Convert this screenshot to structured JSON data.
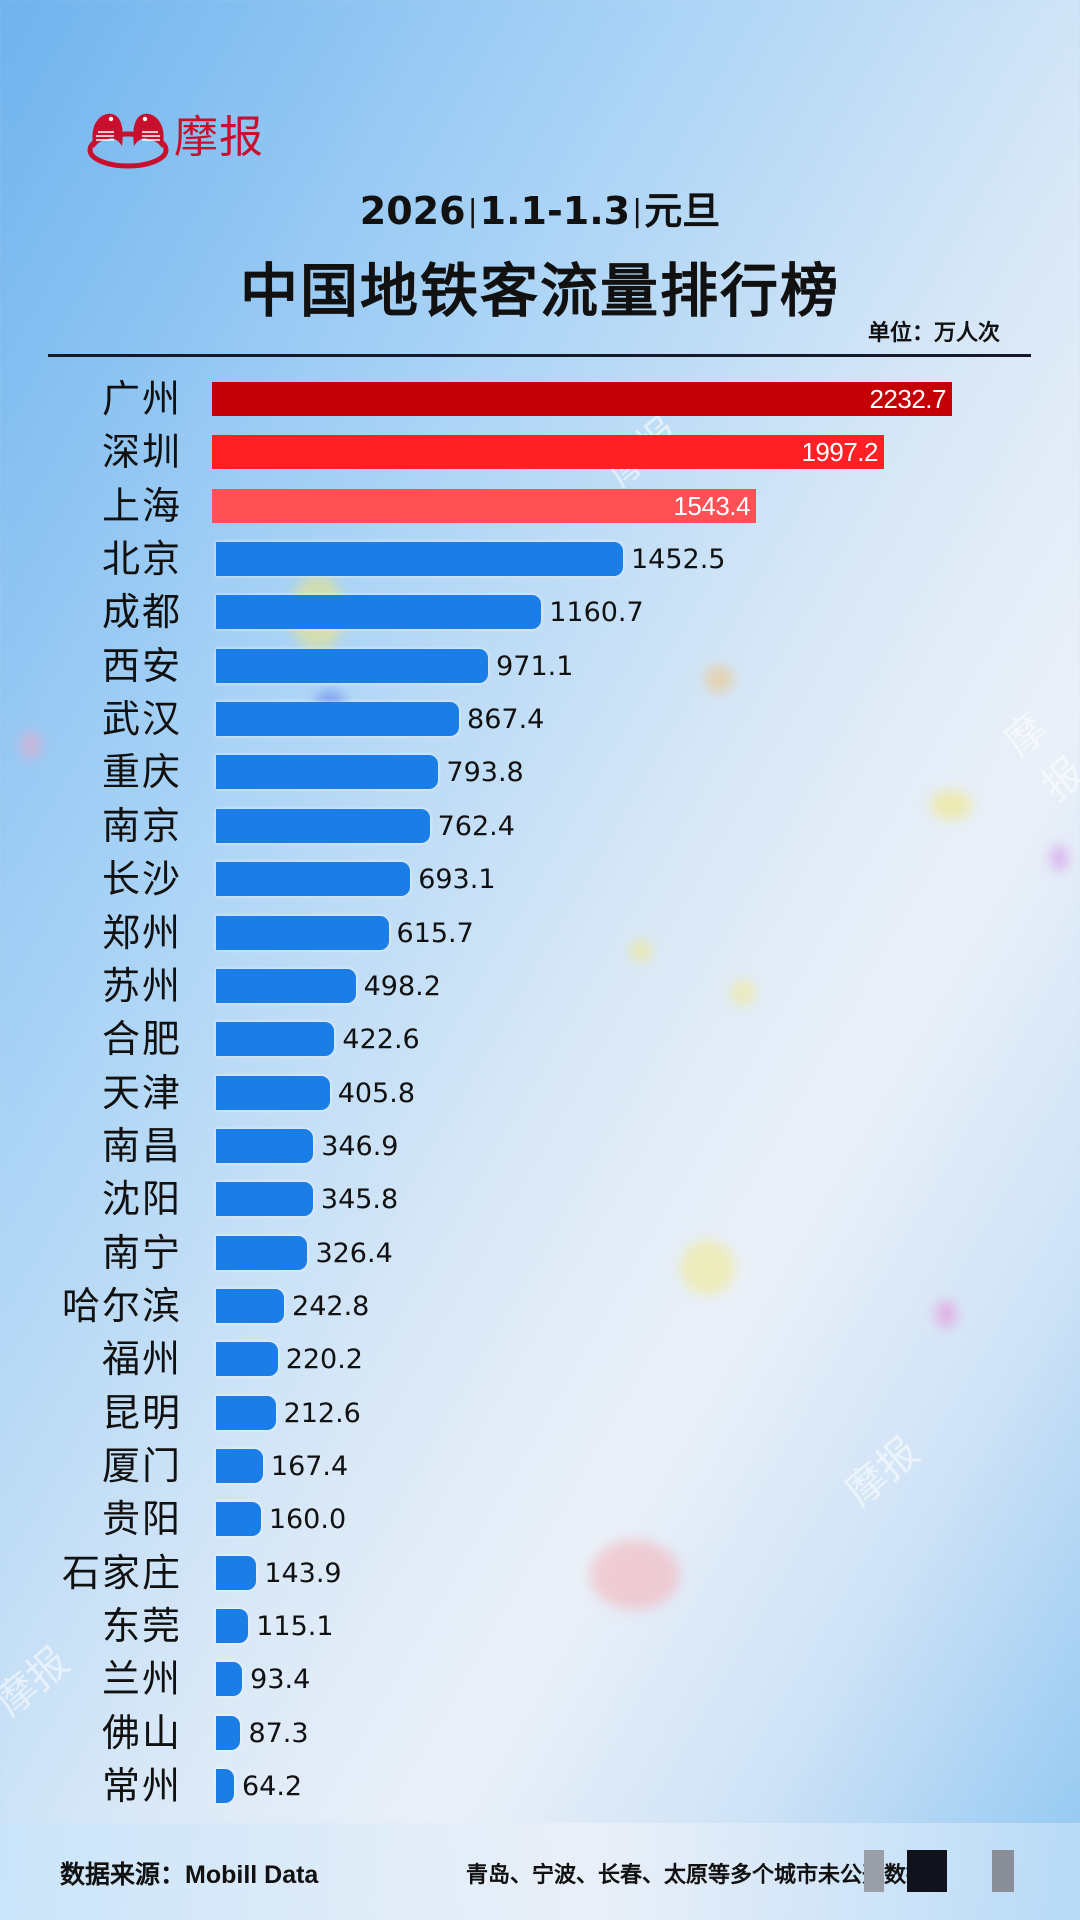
{
  "header": {
    "brand": "摩报",
    "subtitle_year": "2026",
    "subtitle_range": "1.1-1.3",
    "subtitle_holiday": "元旦",
    "subtitle_separator": "|",
    "title": "中国地铁客流量排行榜",
    "unit": "单位：万人次"
  },
  "footer": {
    "source": "数据来源：Mobill Data",
    "note": "青岛、宁波、长春、太原等多个城市未公开数据"
  },
  "watermark": "摩报",
  "colors": {
    "rank1": "#c40006",
    "rank2": "#ff1f24",
    "rank3": "#ff5055",
    "others": "#1a7ee6",
    "brand": "#c8102e"
  },
  "rows": [
    {
      "city": "广州",
      "value": "2232.7"
    },
    {
      "city": "深圳",
      "value": "1997.2"
    },
    {
      "city": "上海",
      "value": "1543.4"
    },
    {
      "city": "北京",
      "value": "1452.5"
    },
    {
      "city": "成都",
      "value": "1160.7"
    },
    {
      "city": "西安",
      "value": "971.1"
    },
    {
      "city": "武汉",
      "value": "867.4"
    },
    {
      "city": "重庆",
      "value": "793.8"
    },
    {
      "city": "南京",
      "value": "762.4"
    },
    {
      "city": "长沙",
      "value": "693.1"
    },
    {
      "city": "郑州",
      "value": "615.7"
    },
    {
      "city": "苏州",
      "value": "498.2"
    },
    {
      "city": "合肥",
      "value": "422.6"
    },
    {
      "city": "天津",
      "value": "405.8"
    },
    {
      "city": "南昌",
      "value": "346.9"
    },
    {
      "city": "沈阳",
      "value": "345.8"
    },
    {
      "city": "南宁",
      "value": "326.4"
    },
    {
      "city": "哈尔滨",
      "value": "242.8"
    },
    {
      "city": "福州",
      "value": "220.2"
    },
    {
      "city": "昆明",
      "value": "212.6"
    },
    {
      "city": "厦门",
      "value": "167.4"
    },
    {
      "city": "贵阳",
      "value": "160.0"
    },
    {
      "city": "石家庄",
      "value": "143.9"
    },
    {
      "city": "东莞",
      "value": "115.1"
    },
    {
      "city": "兰州",
      "value": "93.4"
    },
    {
      "city": "佛山",
      "value": "87.3"
    },
    {
      "city": "常州",
      "value": "64.2"
    }
  ],
  "chart_data": {
    "type": "bar",
    "orientation": "horizontal",
    "title": "中国地铁客流量排行榜",
    "subtitle": "2026 | 1.1-1.3 | 元旦",
    "xlabel": "",
    "ylabel": "",
    "unit": "万人次",
    "categories": [
      "广州",
      "深圳",
      "上海",
      "北京",
      "成都",
      "西安",
      "武汉",
      "重庆",
      "南京",
      "长沙",
      "郑州",
      "苏州",
      "合肥",
      "天津",
      "南昌",
      "沈阳",
      "南宁",
      "哈尔滨",
      "福州",
      "昆明",
      "厦门",
      "贵阳",
      "石家庄",
      "东莞",
      "兰州",
      "佛山",
      "常州"
    ],
    "values": [
      2232.7,
      1997.2,
      1543.4,
      1452.5,
      1160.7,
      971.1,
      867.4,
      793.8,
      762.4,
      693.1,
      615.7,
      498.2,
      422.6,
      405.8,
      346.9,
      345.8,
      326.4,
      242.8,
      220.2,
      212.6,
      167.4,
      160.0,
      143.9,
      115.1,
      93.4,
      87.3,
      64.2
    ],
    "highlight": {
      "top3_colors": [
        "#c40006",
        "#ff1f24",
        "#ff5055"
      ],
      "rest_color": "#1a7ee6"
    },
    "data_labels": true,
    "grid": false,
    "legend": null,
    "source": "Mobill Data",
    "note": "青岛、宁波、长春、太原等多个城市未公开数据"
  }
}
